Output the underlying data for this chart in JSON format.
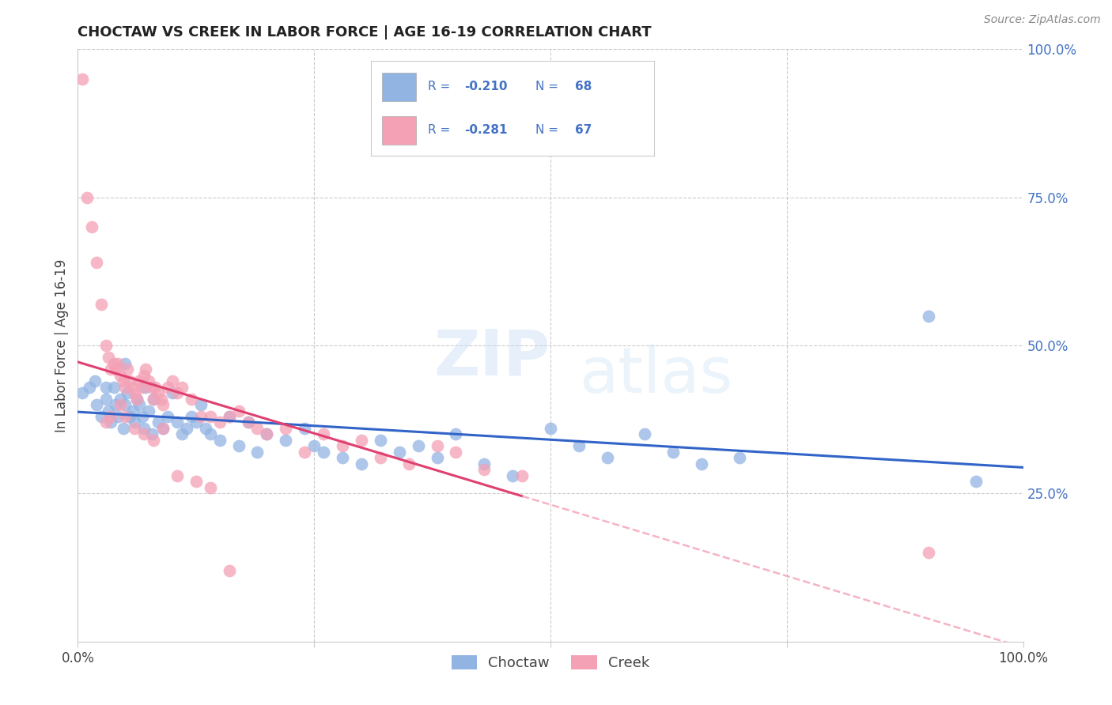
{
  "title": "CHOCTAW VS CREEK IN LABOR FORCE | AGE 16-19 CORRELATION CHART",
  "source": "Source: ZipAtlas.com",
  "ylabel": "In Labor Force | Age 16-19",
  "choctaw_R": -0.21,
  "choctaw_N": 68,
  "creek_R": -0.281,
  "creek_N": 67,
  "choctaw_color": "#92b4e3",
  "creek_color": "#f4a0b5",
  "choctaw_line_color": "#3264c8",
  "creek_line_color": "#e04070",
  "creek_dash_color": "#f4a0b5",
  "legend_text_color": "#4472c4",
  "title_color": "#222222",
  "source_color": "#888888",
  "grid_color": "#cccccc",
  "ylabel_color": "#444444",
  "choctaw_x": [
    0.5,
    1.2,
    1.8,
    2.0,
    2.5,
    3.0,
    3.2,
    3.5,
    3.8,
    4.0,
    4.2,
    4.5,
    4.8,
    5.0,
    5.2,
    5.5,
    5.8,
    6.0,
    6.2,
    6.5,
    6.8,
    7.0,
    7.2,
    7.5,
    7.8,
    8.0,
    8.5,
    9.0,
    9.5,
    10.0,
    10.5,
    11.0,
    11.5,
    12.0,
    12.5,
    13.0,
    13.5,
    14.0,
    15.0,
    16.0,
    17.0,
    18.0,
    19.0,
    20.0,
    22.0,
    24.0,
    25.0,
    26.0,
    28.0,
    30.0,
    32.0,
    34.0,
    36.0,
    38.0,
    40.0,
    43.0,
    46.0,
    50.0,
    53.0,
    56.0,
    60.0,
    63.0,
    66.0,
    70.0,
    90.0,
    95.0,
    3.0,
    5.0
  ],
  "choctaw_y": [
    42.0,
    43.0,
    44.0,
    40.0,
    38.0,
    41.0,
    39.0,
    37.0,
    43.0,
    40.0,
    38.0,
    41.0,
    36.0,
    40.0,
    42.0,
    38.0,
    39.0,
    37.0,
    41.0,
    40.0,
    38.0,
    36.0,
    43.0,
    39.0,
    35.0,
    41.0,
    37.0,
    36.0,
    38.0,
    42.0,
    37.0,
    35.0,
    36.0,
    38.0,
    37.0,
    40.0,
    36.0,
    35.0,
    34.0,
    38.0,
    33.0,
    37.0,
    32.0,
    35.0,
    34.0,
    36.0,
    33.0,
    32.0,
    31.0,
    30.0,
    34.0,
    32.0,
    33.0,
    31.0,
    35.0,
    30.0,
    28.0,
    36.0,
    33.0,
    31.0,
    35.0,
    32.0,
    30.0,
    31.0,
    55.0,
    27.0,
    43.0,
    47.0
  ],
  "creek_x": [
    0.5,
    1.0,
    1.5,
    2.0,
    2.5,
    3.0,
    3.2,
    3.5,
    3.8,
    4.0,
    4.2,
    4.5,
    4.8,
    5.0,
    5.2,
    5.5,
    5.8,
    6.0,
    6.2,
    6.5,
    6.8,
    7.0,
    7.2,
    7.5,
    7.8,
    8.0,
    8.2,
    8.5,
    8.8,
    9.0,
    9.5,
    10.0,
    10.5,
    11.0,
    12.0,
    13.0,
    14.0,
    15.0,
    16.0,
    17.0,
    18.0,
    19.0,
    20.0,
    22.0,
    24.0,
    26.0,
    28.0,
    30.0,
    32.0,
    35.0,
    38.0,
    40.0,
    43.0,
    47.0,
    4.5,
    5.0,
    6.0,
    7.0,
    8.0,
    9.0,
    3.0,
    10.5,
    12.5,
    14.0,
    16.0,
    90.0,
    3.5
  ],
  "creek_y": [
    95.0,
    75.0,
    70.0,
    64.0,
    57.0,
    50.0,
    48.0,
    46.0,
    47.0,
    46.0,
    47.0,
    45.0,
    44.0,
    43.0,
    46.0,
    44.0,
    43.0,
    42.0,
    41.0,
    44.0,
    43.0,
    45.0,
    46.0,
    44.0,
    43.0,
    41.0,
    43.0,
    42.0,
    41.0,
    40.0,
    43.0,
    44.0,
    42.0,
    43.0,
    41.0,
    38.0,
    38.0,
    37.0,
    38.0,
    39.0,
    37.0,
    36.0,
    35.0,
    36.0,
    32.0,
    35.0,
    33.0,
    34.0,
    31.0,
    30.0,
    33.0,
    32.0,
    29.0,
    28.0,
    40.0,
    38.0,
    36.0,
    35.0,
    34.0,
    36.0,
    37.0,
    28.0,
    27.0,
    26.0,
    12.0,
    15.0,
    38.0
  ]
}
